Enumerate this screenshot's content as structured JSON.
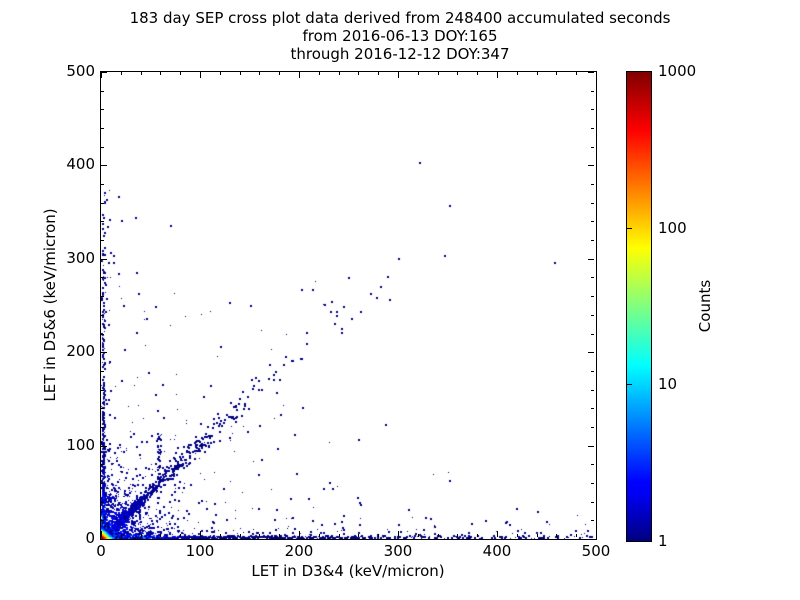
{
  "figure": {
    "title_lines": [
      "183 day SEP cross plot data derived from 248400 accumulated seconds",
      "from 2016-06-13 DOY:165",
      "through 2016-12-12 DOY:347"
    ]
  },
  "colors": {
    "background": "#ffffff",
    "frame": "#000000",
    "single_count_point": "#000080",
    "colormap_top": "#800000"
  },
  "chart_data": {
    "type": "heatmap",
    "title": "183 day SEP cross plot data derived from 248400 accumulated seconds from 2016-06-13 DOY:165 through 2016-12-12 DOY:347",
    "xlabel": "LET in D3&4 (keV/micron)",
    "ylabel": "LET in D5&6 (keV/micron)",
    "xlim": [
      0,
      500
    ],
    "ylim": [
      0,
      500
    ],
    "x_ticks": [
      0,
      100,
      200,
      300,
      400,
      500
    ],
    "y_ticks": [
      0,
      100,
      200,
      300,
      400,
      500
    ],
    "minor_tick_step": 20,
    "grid": false,
    "legend": null,
    "colorbar": {
      "label": "Counts",
      "scale": "log",
      "min": 1,
      "max": 1000,
      "ticks": [
        1,
        10,
        100,
        1000
      ],
      "colormap": "jet"
    },
    "features": [
      {
        "name": "hot-core",
        "desc": "Dense 2D-histogram core at the origin (0-15 keV/micron on both axes) with counts approaching 1000: red/orange at the very corner, ringed by yellow, green, cyan, fading to blue"
      },
      {
        "name": "x-axis-band",
        "desc": "Near-continuous band of 1-few-count bins hugging y=0 from x=0 out to x=500, density and counts decreasing with x (green/cyan tints only below x~35)"
      },
      {
        "name": "y-axis-band",
        "desc": "Band of 1-few-count bins hugging x=0 up to y~380, densest below y~150"
      },
      {
        "name": "diagonal-band",
        "desc": "Correlated band along y~x from the origin out to ~(290,290); fairly dense below ~100, sparse single counts beyond"
      },
      {
        "name": "origin-cloud",
        "desc": "Diffuse blue single-count scatter filling the region x,y < ~120"
      },
      {
        "name": "sparse-outliers",
        "desc": "Isolated single-count events away from the main structures, listed in outlier_points"
      }
    ],
    "generator": {
      "seed": 20160613,
      "corner_core": {
        "extent_kev": 16,
        "peak_counts": 1100,
        "decay_kev": 2.0
      },
      "x_axis_band": {
        "y_max": 3.2,
        "density0_per_kev": 3.2,
        "density_decay_kev": 130,
        "density_floor": 0.55,
        "floor_decay_kev": 400,
        "count0": 26,
        "count_decay_kev": 22
      },
      "y_axis_band": {
        "x_max": 3.2,
        "extent_kev": 380,
        "dense_extent_kev": 310,
        "density0_per_kev": 2.6,
        "density_decay_kev": 75,
        "density_floor": 0.32,
        "sparse_floor": 0.1,
        "count0": 20,
        "count_decay_kev": 18
      },
      "origin_cloud": {
        "n": 950,
        "mean_kev": 21,
        "count0": 7,
        "count_decay_kev": 26,
        "n_wide": 260,
        "wide_mean_kev": 75
      },
      "diagonal_band": {
        "n": 520,
        "mean_t_kev": 60,
        "t_max": 292,
        "slope": 1.02,
        "width0": 0.6,
        "width_slope": 0.04,
        "n_core": 240,
        "core_mean_t": 22,
        "core_t_max": 85
      },
      "vertical_strip": {
        "n": 40,
        "x_center": 58,
        "x_sigma": 1.4,
        "y_min": 55,
        "y_max": 115
      },
      "x_scatter": {
        "n": 130,
        "y_mean": 7,
        "y_offset": 1.5,
        "y_max": 38
      },
      "y_scatter": {
        "n": 85,
        "x_mean": 5.5,
        "x_offset": 1.5,
        "x_max": 45,
        "y_extent": 380
      }
    },
    "outlier_points": [
      [
        321,
        403
      ],
      [
        352,
        357
      ],
      [
        346,
        303
      ],
      [
        458,
        295
      ],
      [
        272,
        262
      ],
      [
        282,
        270
      ],
      [
        242,
        225
      ],
      [
        202,
        267
      ],
      [
        213,
        267
      ],
      [
        232,
        254
      ],
      [
        253,
        236
      ],
      [
        262,
        243
      ],
      [
        55,
        248
      ],
      [
        37,
        262
      ],
      [
        12,
        296
      ],
      [
        22,
        249
      ],
      [
        150,
        250
      ],
      [
        120,
        206
      ],
      [
        141,
        132
      ],
      [
        118,
        121
      ],
      [
        110,
        164
      ],
      [
        75,
        92
      ],
      [
        160,
        121
      ],
      [
        203,
        140
      ],
      [
        178,
        96
      ],
      [
        260,
        106
      ],
      [
        287,
        122
      ],
      [
        230,
        60
      ],
      [
        262,
        36
      ],
      [
        310,
        31
      ],
      [
        352,
        62
      ],
      [
        332,
        21
      ],
      [
        388,
        19
      ],
      [
        412,
        15
      ],
      [
        440,
        29
      ],
      [
        300,
        15
      ]
    ]
  }
}
